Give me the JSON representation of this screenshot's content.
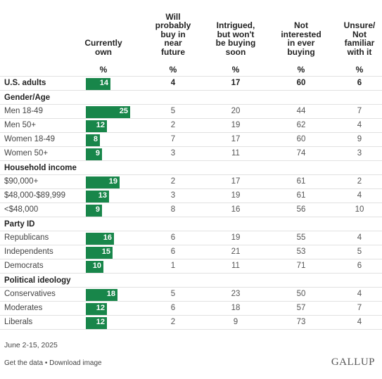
{
  "chart_data": {
    "type": "table",
    "columns": [
      {
        "key": "own",
        "label_lines": [
          "Currently",
          "own"
        ],
        "unit": "%"
      },
      {
        "key": "buy",
        "label_lines": [
          "Will",
          "probably",
          "buy in",
          "near",
          "future"
        ],
        "unit": "%"
      },
      {
        "key": "intrigued",
        "label_lines": [
          "Intrigued,",
          "but won't",
          "be buying",
          "soon"
        ],
        "unit": "%"
      },
      {
        "key": "not_interested",
        "label_lines": [
          "Not",
          "interested",
          "in ever",
          "buying"
        ],
        "unit": "%"
      },
      {
        "key": "unsure",
        "label_lines": [
          "Unsure/",
          "Not",
          "familiar",
          "with it"
        ],
        "unit": "%"
      }
    ],
    "bar_max": 30,
    "bar_color": "#18864a",
    "total_row": {
      "label": "U.S. adults",
      "values": [
        14,
        4,
        17,
        60,
        6
      ]
    },
    "groups": [
      {
        "title": "Gender/Age",
        "rows": [
          {
            "label": "Men 18-49",
            "values": [
              25,
              5,
              20,
              44,
              7
            ]
          },
          {
            "label": "Men 50+",
            "values": [
              12,
              2,
              19,
              62,
              4
            ]
          },
          {
            "label": "Women 18-49",
            "values": [
              8,
              7,
              17,
              60,
              9
            ]
          },
          {
            "label": "Women 50+",
            "values": [
              9,
              3,
              11,
              74,
              3
            ]
          }
        ]
      },
      {
        "title": "Household income",
        "rows": [
          {
            "label": "$90,000+",
            "values": [
              19,
              2,
              17,
              61,
              2
            ]
          },
          {
            "label": "$48,000-$89,999",
            "values": [
              13,
              3,
              19,
              61,
              4
            ]
          },
          {
            "label": "<$48,000",
            "values": [
              9,
              8,
              16,
              56,
              10
            ]
          }
        ]
      },
      {
        "title": "Party ID",
        "rows": [
          {
            "label": "Republicans",
            "values": [
              16,
              6,
              19,
              55,
              4
            ]
          },
          {
            "label": "Independents",
            "values": [
              15,
              6,
              21,
              53,
              5
            ]
          },
          {
            "label": "Democrats",
            "values": [
              10,
              1,
              11,
              71,
              6
            ]
          }
        ]
      },
      {
        "title": "Political ideology",
        "rows": [
          {
            "label": "Conservatives",
            "values": [
              18,
              5,
              23,
              50,
              4
            ]
          },
          {
            "label": "Moderates",
            "values": [
              12,
              6,
              18,
              57,
              7
            ]
          },
          {
            "label": "Liberals",
            "values": [
              12,
              2,
              9,
              73,
              4
            ]
          }
        ]
      }
    ]
  },
  "footer": {
    "date": "June 2-15, 2025",
    "get_data": "Get the data",
    "separator": "•",
    "download": "Download image",
    "logo": "GALLUP"
  }
}
